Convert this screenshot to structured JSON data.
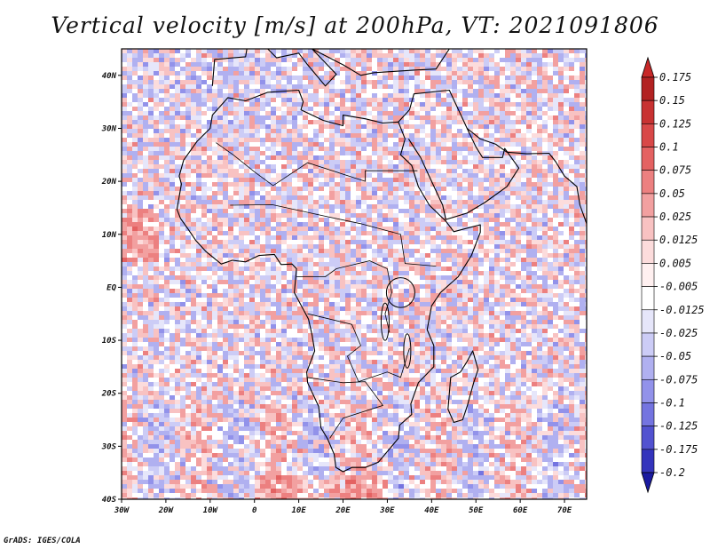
{
  "title": "Vertical velocity [m/s] at 200hPa, VT: 2021091806",
  "credit": "GrADS: IGES/COLA",
  "chart_data": {
    "type": "heatmap",
    "title": "Vertical velocity [m/s] at 200hPa, VT: 2021091806",
    "variable": "Vertical velocity",
    "units": "m/s",
    "level": "200hPa",
    "valid_time": "2021091806",
    "xlim": [
      -30,
      75
    ],
    "ylim": [
      -40,
      45
    ],
    "x_ticks": [
      {
        "value": -30,
        "label": "30W"
      },
      {
        "value": -20,
        "label": "20W"
      },
      {
        "value": -10,
        "label": "10W"
      },
      {
        "value": 0,
        "label": "0"
      },
      {
        "value": 10,
        "label": "10E"
      },
      {
        "value": 20,
        "label": "20E"
      },
      {
        "value": 30,
        "label": "30E"
      },
      {
        "value": 40,
        "label": "40E"
      },
      {
        "value": 50,
        "label": "50E"
      },
      {
        "value": 60,
        "label": "60E"
      },
      {
        "value": 70,
        "label": "70E"
      }
    ],
    "y_ticks": [
      {
        "value": 40,
        "label": "40N"
      },
      {
        "value": 30,
        "label": "30N"
      },
      {
        "value": 20,
        "label": "20N"
      },
      {
        "value": 10,
        "label": "10N"
      },
      {
        "value": 0,
        "label": "EQ"
      },
      {
        "value": -10,
        "label": "10S"
      },
      {
        "value": -20,
        "label": "20S"
      },
      {
        "value": -30,
        "label": "30S"
      },
      {
        "value": -40,
        "label": "40S"
      }
    ],
    "colorbar": [
      {
        "label": "0.175",
        "color": "#b22222"
      },
      {
        "label": "0.15",
        "color": "#c83232"
      },
      {
        "label": "0.125",
        "color": "#d84848"
      },
      {
        "label": "0.1",
        "color": "#e46262"
      },
      {
        "label": "0.075",
        "color": "#ec8080"
      },
      {
        "label": "0.05",
        "color": "#f2a0a0"
      },
      {
        "label": "0.025",
        "color": "#f8c2c2"
      },
      {
        "label": "0.0125",
        "color": "#fcdcdc"
      },
      {
        "label": "0.005",
        "color": "#fff0f0"
      },
      {
        "label": "-0.005",
        "color": "#ffffff"
      },
      {
        "label": "-0.0125",
        "color": "#e6e6fa"
      },
      {
        "label": "-0.025",
        "color": "#ccccf6"
      },
      {
        "label": "-0.05",
        "color": "#b0b0f0"
      },
      {
        "label": "-0.075",
        "color": "#9292ea"
      },
      {
        "label": "-0.1",
        "color": "#7474e0"
      },
      {
        "label": "-0.125",
        "color": "#5252d0"
      },
      {
        "label": "-0.175",
        "color": "#3434bc"
      },
      {
        "label": "-0.2",
        "color": "#2020a0"
      }
    ],
    "colorbar_ends": {
      "top": "#c82828",
      "bottom": "#1a1aa0"
    }
  }
}
